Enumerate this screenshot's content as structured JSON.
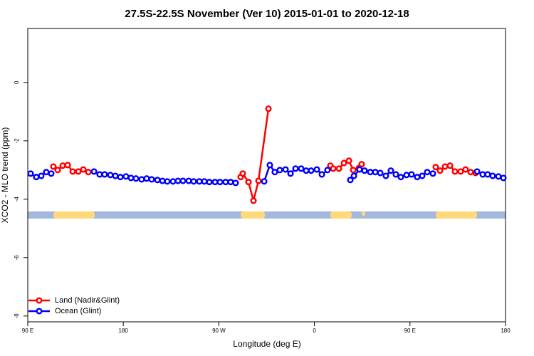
{
  "chart_data": {
    "type": "line",
    "title": "27.5S-22.5S November (Ver 10)   2015-01-01 to 2020-12-18",
    "xlabel": "Longitude (deg E)",
    "ylabel": "XCO2 - MLO trend (ppm)",
    "xlim": [
      90,
      540
    ],
    "ylim": [
      -8.2,
      1.85
    ],
    "xticks": [
      {
        "value": 90,
        "label": "90 E"
      },
      180,
      {
        "value": 270,
        "label": "90 W"
      },
      {
        "value": 360,
        "label": "0"
      },
      {
        "value": 450,
        "label": "90 E"
      },
      {
        "value": 540,
        "label": "180"
      }
    ],
    "yticks": [
      0,
      -2,
      -4,
      -6,
      -8
    ],
    "legend": "bottom-left",
    "series": [
      {
        "name": "Land (Nadir&Glint)",
        "color": "#ff0000",
        "x": [
          114.1,
          118.2,
          122.9,
          127.6,
          132.3,
          137.6,
          142.3,
          147.0,
          null,
          290.5,
          292.5,
          297.9,
          302.6,
          307.3,
          316.7,
          null,
          375.0,
          377.7,
          383.1,
          387.8,
          392.5,
          396.5,
          401.9,
          404.5,
          null,
          474.3,
          478.3,
          483.0,
          487.7,
          492.4,
          497.7,
          502.4,
          507.1,
          511.8
        ],
        "values": [
          -2.88,
          -3.0,
          -2.85,
          -2.83,
          -3.05,
          -3.05,
          -2.98,
          -3.07,
          null,
          -3.24,
          -3.12,
          -3.41,
          -4.05,
          -3.37,
          -0.9,
          null,
          -2.85,
          -2.95,
          -2.95,
          -2.76,
          -2.68,
          -3.0,
          -2.93,
          -2.8,
          null,
          -2.9,
          -3.02,
          -2.88,
          -2.85,
          -3.05,
          -3.05,
          -2.98,
          -3.07,
          -3.1
        ]
      },
      {
        "name": "Ocean (Glint)",
        "color": "#0000ff",
        "x": [
          92.7,
          98.0,
          102.7,
          107.4,
          112.1,
          null,
          152.4,
          157.7,
          162.4,
          167.8,
          172.5,
          177.2,
          182.5,
          187.2,
          191.9,
          197.3,
          202.0,
          206.7,
          212.1,
          216.8,
          221.4,
          226.8,
          231.5,
          236.2,
          241.6,
          246.3,
          251.6,
          256.3,
          261.0,
          266.4,
          271.1,
          276.4,
          281.1,
          285.8,
          null,
          312.7,
          318.0,
          322.7,
          327.4,
          332.8,
          337.5,
          342.2,
          347.5,
          352.2,
          356.9,
          362.3,
          367.0,
          372.3,
          null,
          393.8,
          397.2,
          402.5,
          407.2,
          412.6,
          417.3,
          422.0,
          427.3,
          432.0,
          436.7,
          441.4,
          446.8,
          451.5,
          456.8,
          461.5,
          466.2,
          471.6,
          null,
          513.2,
          518.5,
          523.2,
          527.9,
          533.3,
          538.0
        ],
        "values": [
          -3.12,
          -3.24,
          -3.2,
          -3.07,
          -3.12,
          null,
          -3.05,
          -3.15,
          -3.15,
          -3.17,
          -3.2,
          -3.24,
          -3.22,
          -3.27,
          -3.29,
          -3.32,
          -3.29,
          -3.32,
          -3.34,
          -3.37,
          -3.39,
          -3.39,
          -3.37,
          -3.37,
          -3.37,
          -3.39,
          -3.39,
          -3.39,
          -3.41,
          -3.41,
          -3.41,
          -3.41,
          -3.41,
          -3.44,
          null,
          -3.39,
          -2.83,
          -3.07,
          -3.0,
          -2.98,
          -3.12,
          -2.95,
          -2.95,
          -3.02,
          -3.02,
          -2.98,
          -3.15,
          -3.0,
          null,
          -3.34,
          -3.2,
          -2.98,
          -3.02,
          -3.07,
          -3.07,
          -3.1,
          -3.2,
          -3.02,
          -3.15,
          -3.24,
          -3.17,
          -3.15,
          -3.24,
          -3.2,
          -3.07,
          -3.12,
          null,
          -3.05,
          -3.15,
          -3.15,
          -3.2,
          -3.22,
          -3.27
        ]
      }
    ]
  }
}
